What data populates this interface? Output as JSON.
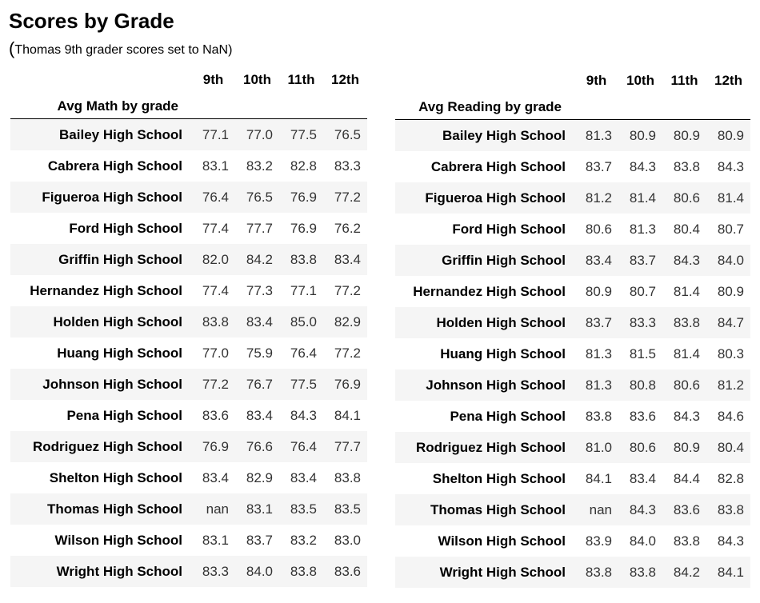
{
  "title": "Scores by Grade",
  "subtitle_paren": "(",
  "subtitle": "Thomas 9th grader scores set to NaN)",
  "grades": [
    "9th",
    "10th",
    "11th",
    "12th"
  ],
  "math": {
    "index_name": "Avg Math by grade",
    "rows": [
      {
        "school": "Bailey High School",
        "values": [
          "77.1",
          "77.0",
          "77.5",
          "76.5"
        ]
      },
      {
        "school": "Cabrera High School",
        "values": [
          "83.1",
          "83.2",
          "82.8",
          "83.3"
        ]
      },
      {
        "school": "Figueroa High School",
        "values": [
          "76.4",
          "76.5",
          "76.9",
          "77.2"
        ]
      },
      {
        "school": "Ford High School",
        "values": [
          "77.4",
          "77.7",
          "76.9",
          "76.2"
        ]
      },
      {
        "school": "Griffin High School",
        "values": [
          "82.0",
          "84.2",
          "83.8",
          "83.4"
        ]
      },
      {
        "school": "Hernandez High School",
        "values": [
          "77.4",
          "77.3",
          "77.1",
          "77.2"
        ]
      },
      {
        "school": "Holden High School",
        "values": [
          "83.8",
          "83.4",
          "85.0",
          "82.9"
        ]
      },
      {
        "school": "Huang High School",
        "values": [
          "77.0",
          "75.9",
          "76.4",
          "77.2"
        ]
      },
      {
        "school": "Johnson High School",
        "values": [
          "77.2",
          "76.7",
          "77.5",
          "76.9"
        ]
      },
      {
        "school": "Pena High School",
        "values": [
          "83.6",
          "83.4",
          "84.3",
          "84.1"
        ]
      },
      {
        "school": "Rodriguez High School",
        "values": [
          "76.9",
          "76.6",
          "76.4",
          "77.7"
        ]
      },
      {
        "school": "Shelton High School",
        "values": [
          "83.4",
          "82.9",
          "83.4",
          "83.8"
        ]
      },
      {
        "school": "Thomas High School",
        "values": [
          "nan",
          "83.1",
          "83.5",
          "83.5"
        ]
      },
      {
        "school": "Wilson High School",
        "values": [
          "83.1",
          "83.7",
          "83.2",
          "83.0"
        ]
      },
      {
        "school": "Wright High School",
        "values": [
          "83.3",
          "84.0",
          "83.8",
          "83.6"
        ]
      }
    ]
  },
  "reading": {
    "index_name": "Avg Reading by grade",
    "rows": [
      {
        "school": "Bailey High School",
        "values": [
          "81.3",
          "80.9",
          "80.9",
          "80.9"
        ]
      },
      {
        "school": "Cabrera High School",
        "values": [
          "83.7",
          "84.3",
          "83.8",
          "84.3"
        ]
      },
      {
        "school": "Figueroa High School",
        "values": [
          "81.2",
          "81.4",
          "80.6",
          "81.4"
        ]
      },
      {
        "school": "Ford High School",
        "values": [
          "80.6",
          "81.3",
          "80.4",
          "80.7"
        ]
      },
      {
        "school": "Griffin High School",
        "values": [
          "83.4",
          "83.7",
          "84.3",
          "84.0"
        ]
      },
      {
        "school": "Hernandez High School",
        "values": [
          "80.9",
          "80.7",
          "81.4",
          "80.9"
        ]
      },
      {
        "school": "Holden High School",
        "values": [
          "83.7",
          "83.3",
          "83.8",
          "84.7"
        ]
      },
      {
        "school": "Huang High School",
        "values": [
          "81.3",
          "81.5",
          "81.4",
          "80.3"
        ]
      },
      {
        "school": "Johnson High School",
        "values": [
          "81.3",
          "80.8",
          "80.6",
          "81.2"
        ]
      },
      {
        "school": "Pena High School",
        "values": [
          "83.8",
          "83.6",
          "84.3",
          "84.6"
        ]
      },
      {
        "school": "Rodriguez High School",
        "values": [
          "81.0",
          "80.6",
          "80.9",
          "80.4"
        ]
      },
      {
        "school": "Shelton High School",
        "values": [
          "84.1",
          "83.4",
          "84.4",
          "82.8"
        ]
      },
      {
        "school": "Thomas High School",
        "values": [
          "nan",
          "84.3",
          "83.6",
          "83.8"
        ]
      },
      {
        "school": "Wilson High School",
        "values": [
          "83.9",
          "84.0",
          "83.8",
          "84.3"
        ]
      },
      {
        "school": "Wright High School",
        "values": [
          "83.8",
          "83.8",
          "84.2",
          "84.1"
        ]
      }
    ]
  }
}
